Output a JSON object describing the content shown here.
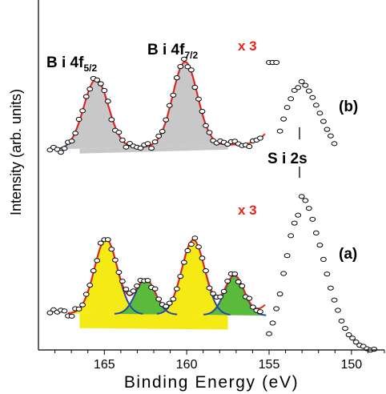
{
  "chart_data": {
    "type": "line",
    "xlabel": "Binding Energy (eV)",
    "ylabel": "Intensity (arb. units)",
    "xlim": [
      169,
      148
    ],
    "x_reversed": true,
    "xticks": [
      165,
      160,
      155,
      150
    ],
    "panels": [
      {
        "label": "(b)",
        "multiplier_label": "x 3",
        "peak_labels": [
          {
            "base": "B i  4f",
            "sub": "5/2",
            "x": 165.6
          },
          {
            "base": "B i  4f",
            "sub": "7/2",
            "x": 160.1
          }
        ],
        "fitted_peaks": [
          {
            "center": 165.5,
            "height": 0.82,
            "width": 0.75,
            "color": "#c8c8c8"
          },
          {
            "center": 160.1,
            "height": 1.0,
            "width": 0.75,
            "color": "#c8c8c8"
          }
        ],
        "si2s_peak": {
          "center": 153.2,
          "height": 1.75
        }
      },
      {
        "label": "(a)",
        "multiplier_label": "x 3",
        "fitted_peaks": [
          {
            "center": 164.9,
            "height": 0.85,
            "width": 0.7,
            "color": "#f5ea14"
          },
          {
            "center": 162.5,
            "height": 0.4,
            "width": 0.6,
            "color": "#5aba3c"
          },
          {
            "center": 159.6,
            "height": 0.85,
            "width": 0.7,
            "color": "#f5ea14"
          },
          {
            "center": 157.1,
            "height": 0.45,
            "width": 0.6,
            "color": "#5aba3c"
          }
        ],
        "si2s_peak": {
          "center": 153.1,
          "height": 1.45
        }
      }
    ],
    "annotation": "S i  2s",
    "colors": {
      "fit_envelope": "#e8221b",
      "component_outline": "#2c46a8",
      "data_marker": "#000000",
      "multiplier_text": "#e8221b"
    },
    "grid": false
  }
}
